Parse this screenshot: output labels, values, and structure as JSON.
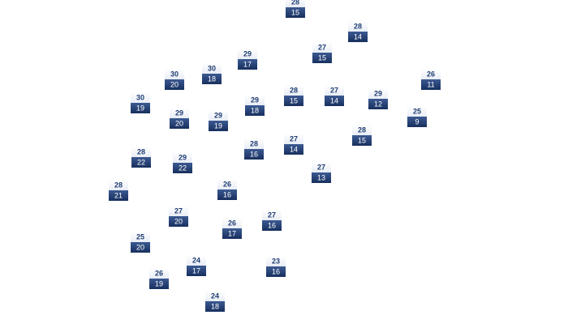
{
  "markers": [
    {
      "high": 28,
      "low": 15
    },
    {
      "high": 28,
      "low": 14
    },
    {
      "high": 27,
      "low": 15
    },
    {
      "high": 29,
      "low": 17
    },
    {
      "high": 30,
      "low": 20
    },
    {
      "high": 30,
      "low": 18
    },
    {
      "high": 26,
      "low": 11
    },
    {
      "high": 30,
      "low": 19
    },
    {
      "high": 29,
      "low": 20
    },
    {
      "high": 29,
      "low": 19
    },
    {
      "high": 29,
      "low": 18
    },
    {
      "high": 28,
      "low": 15
    },
    {
      "high": 27,
      "low": 14
    },
    {
      "high": 29,
      "low": 12
    },
    {
      "high": 25,
      "low": 9
    },
    {
      "high": 28,
      "low": 15
    },
    {
      "high": 28,
      "low": 22
    },
    {
      "high": 29,
      "low": 22
    },
    {
      "high": 28,
      "low": 16
    },
    {
      "high": 27,
      "low": 14
    },
    {
      "high": 27,
      "low": 13
    },
    {
      "high": 28,
      "low": 21
    },
    {
      "high": 26,
      "low": 16
    },
    {
      "high": 27,
      "low": 20
    },
    {
      "high": 26,
      "low": 17
    },
    {
      "high": 27,
      "low": 16
    },
    {
      "high": 25,
      "low": 20
    },
    {
      "high": 24,
      "low": 17
    },
    {
      "high": 23,
      "low": 16
    },
    {
      "high": 26,
      "low": 19
    },
    {
      "high": 24,
      "low": 18
    }
  ]
}
